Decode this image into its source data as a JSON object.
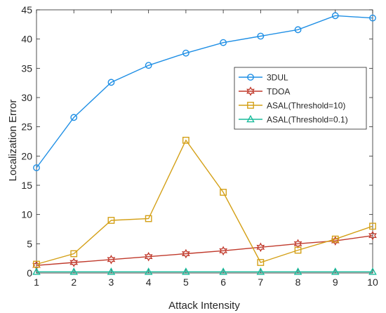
{
  "chart_data": {
    "type": "line",
    "title": "",
    "xlabel": "Attack Intensity",
    "ylabel": "Localization Error",
    "xlim": [
      1,
      10
    ],
    "ylim": [
      0,
      45
    ],
    "xticks": [
      "1",
      "2",
      "3",
      "4",
      "5",
      "6",
      "7",
      "8",
      "9",
      "10"
    ],
    "yticks": [
      "0",
      "5",
      "10",
      "15",
      "20",
      "25",
      "30",
      "35",
      "40",
      "45"
    ],
    "x": [
      1,
      2,
      3,
      4,
      5,
      6,
      7,
      8,
      9,
      10
    ],
    "grid": false,
    "legend_position": "right",
    "series": [
      {
        "name": "3DUL",
        "color": "#1f8fe5",
        "marker": "circle",
        "values": [
          18.0,
          26.6,
          32.6,
          35.5,
          37.6,
          39.4,
          40.5,
          41.6,
          44.0,
          43.6
        ]
      },
      {
        "name": "TDOA",
        "color": "#c0392b",
        "marker": "hexagram",
        "values": [
          1.3,
          1.8,
          2.3,
          2.8,
          3.3,
          3.8,
          4.4,
          5.0,
          5.5,
          6.4
        ]
      },
      {
        "name": "ASAL(Threshold=10)",
        "color": "#d4a017",
        "marker": "square",
        "values": [
          1.5,
          3.3,
          9.0,
          9.3,
          22.7,
          13.8,
          1.8,
          3.9,
          5.8,
          8.0
        ]
      },
      {
        "name": "ASAL(Threshold=0.1)",
        "color": "#1abc9c",
        "marker": "triangle",
        "values": [
          0.2,
          0.2,
          0.2,
          0.2,
          0.2,
          0.2,
          0.2,
          0.2,
          0.2,
          0.2
        ]
      }
    ]
  }
}
